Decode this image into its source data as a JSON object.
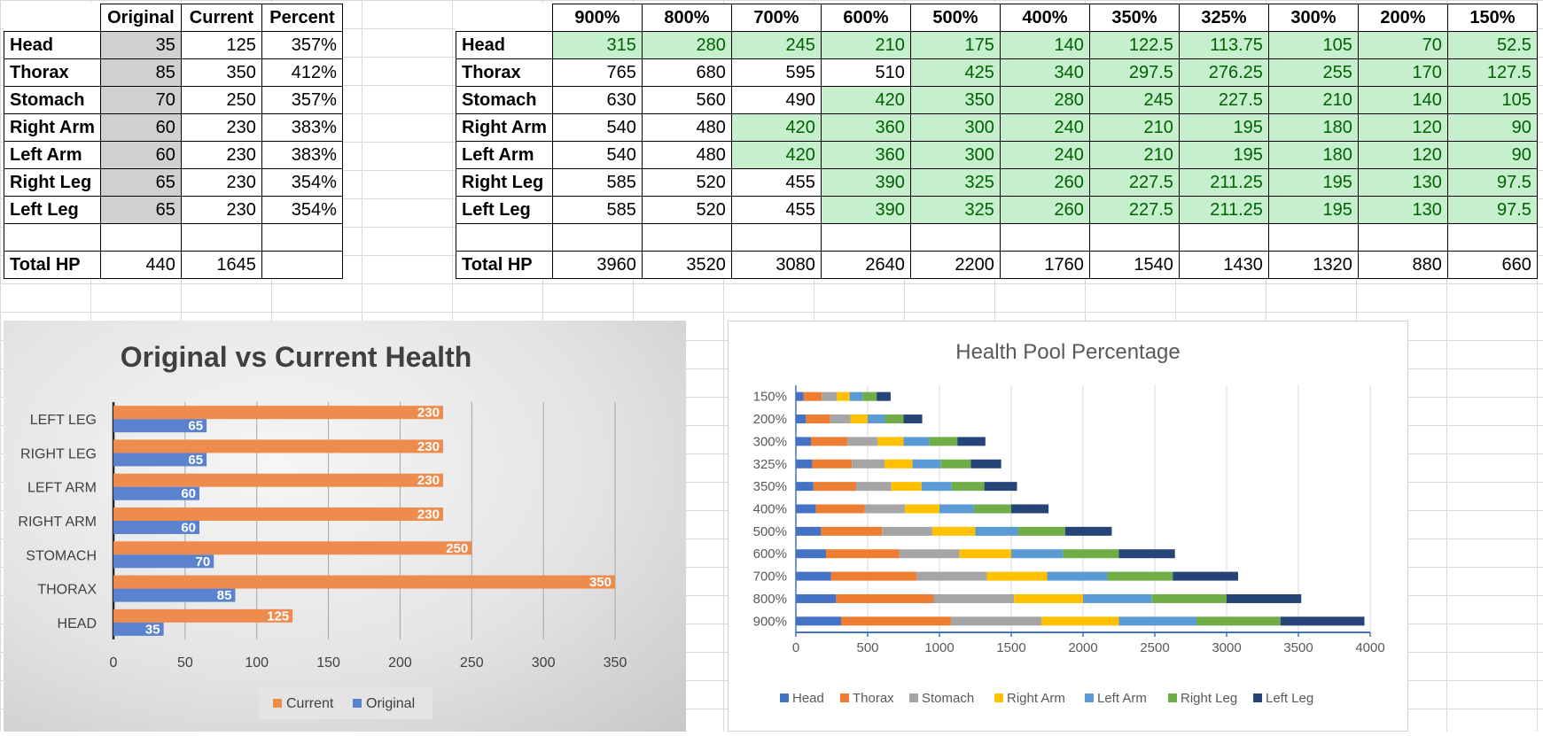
{
  "left_table": {
    "headers": [
      "Original",
      "Current",
      "Percent"
    ],
    "rows": [
      {
        "label": "Head",
        "original": "35",
        "current": "125",
        "percent": "357%"
      },
      {
        "label": "Thorax",
        "original": "85",
        "current": "350",
        "percent": "412%"
      },
      {
        "label": "Stomach",
        "original": "70",
        "current": "250",
        "percent": "357%"
      },
      {
        "label": "Right Arm",
        "original": "60",
        "current": "230",
        "percent": "383%"
      },
      {
        "label": "Left Arm",
        "original": "60",
        "current": "230",
        "percent": "383%"
      },
      {
        "label": "Right Leg",
        "original": "65",
        "current": "230",
        "percent": "354%"
      },
      {
        "label": "Left Leg",
        "original": "65",
        "current": "230",
        "percent": "354%"
      }
    ],
    "total": {
      "label": "Total HP",
      "original": "440",
      "current": "1645",
      "percent": ""
    }
  },
  "right_table": {
    "headers": [
      "900%",
      "800%",
      "700%",
      "600%",
      "500%",
      "400%",
      "350%",
      "325%",
      "300%",
      "200%",
      "150%"
    ],
    "rows": [
      {
        "label": "Head",
        "values": [
          "315",
          "280",
          "245",
          "210",
          "175",
          "140",
          "122.5",
          "113.75",
          "105",
          "70",
          "52.5"
        ],
        "highlight": [
          1,
          1,
          1,
          1,
          1,
          1,
          1,
          1,
          1,
          1,
          1
        ]
      },
      {
        "label": "Thorax",
        "values": [
          "765",
          "680",
          "595",
          "510",
          "425",
          "340",
          "297.5",
          "276.25",
          "255",
          "170",
          "127.5"
        ],
        "highlight": [
          0,
          0,
          0,
          0,
          1,
          1,
          1,
          1,
          1,
          1,
          1
        ]
      },
      {
        "label": "Stomach",
        "values": [
          "630",
          "560",
          "490",
          "420",
          "350",
          "280",
          "245",
          "227.5",
          "210",
          "140",
          "105"
        ],
        "highlight": [
          0,
          0,
          0,
          1,
          1,
          1,
          1,
          1,
          1,
          1,
          1
        ]
      },
      {
        "label": "Right Arm",
        "values": [
          "540",
          "480",
          "420",
          "360",
          "300",
          "240",
          "210",
          "195",
          "180",
          "120",
          "90"
        ],
        "highlight": [
          0,
          0,
          1,
          1,
          1,
          1,
          1,
          1,
          1,
          1,
          1
        ]
      },
      {
        "label": "Left Arm",
        "values": [
          "540",
          "480",
          "420",
          "360",
          "300",
          "240",
          "210",
          "195",
          "180",
          "120",
          "90"
        ],
        "highlight": [
          0,
          0,
          1,
          1,
          1,
          1,
          1,
          1,
          1,
          1,
          1
        ]
      },
      {
        "label": "Right Leg",
        "values": [
          "585",
          "520",
          "455",
          "390",
          "325",
          "260",
          "227.5",
          "211.25",
          "195",
          "130",
          "97.5"
        ],
        "highlight": [
          0,
          0,
          0,
          1,
          1,
          1,
          1,
          1,
          1,
          1,
          1
        ]
      },
      {
        "label": "Left Leg",
        "values": [
          "585",
          "520",
          "455",
          "390",
          "325",
          "260",
          "227.5",
          "211.25",
          "195",
          "130",
          "97.5"
        ],
        "highlight": [
          0,
          0,
          0,
          1,
          1,
          1,
          1,
          1,
          1,
          1,
          1
        ]
      }
    ],
    "total": {
      "label": "Total HP",
      "values": [
        "3960",
        "3520",
        "3080",
        "2640",
        "2200",
        "1760",
        "1540",
        "1430",
        "1320",
        "880",
        "660"
      ]
    }
  },
  "chart_data": [
    {
      "type": "bar",
      "orientation": "horizontal",
      "title": "Original vs Current Health",
      "categories": [
        "HEAD",
        "THORAX",
        "STOMACH",
        "RIGHT ARM",
        "LEFT ARM",
        "RIGHT LEG",
        "LEFT LEG"
      ],
      "series": [
        {
          "name": "Current",
          "values": [
            125,
            350,
            250,
            230,
            230,
            230,
            230
          ],
          "color": "#ed8c4d"
        },
        {
          "name": "Original",
          "values": [
            35,
            85,
            70,
            60,
            60,
            65,
            65
          ],
          "color": "#5b82cf"
        }
      ],
      "xlim": [
        0,
        350
      ],
      "xticks": [
        0,
        50,
        100,
        150,
        200,
        250,
        300,
        350
      ],
      "grid": "vertical",
      "legend": "bottom"
    },
    {
      "type": "bar",
      "orientation": "horizontal",
      "stacked": true,
      "title": "Health Pool Percentage",
      "categories": [
        "900%",
        "800%",
        "700%",
        "600%",
        "500%",
        "400%",
        "350%",
        "325%",
        "300%",
        "200%",
        "150%"
      ],
      "series": [
        {
          "name": "Head",
          "values": [
            315,
            280,
            245,
            210,
            175,
            140,
            122.5,
            113.75,
            105,
            70,
            52.5
          ],
          "color": "#4472c4"
        },
        {
          "name": "Thorax",
          "values": [
            765,
            680,
            595,
            510,
            425,
            340,
            297.5,
            276.25,
            255,
            170,
            127.5
          ],
          "color": "#ed7d31"
        },
        {
          "name": "Stomach",
          "values": [
            630,
            560,
            490,
            420,
            350,
            280,
            245,
            227.5,
            210,
            140,
            105
          ],
          "color": "#a5a5a5"
        },
        {
          "name": "Right Arm",
          "values": [
            540,
            480,
            420,
            360,
            300,
            240,
            210,
            195,
            180,
            120,
            90
          ],
          "color": "#ffc000"
        },
        {
          "name": "Left Arm",
          "values": [
            540,
            480,
            420,
            360,
            300,
            240,
            210,
            195,
            180,
            120,
            90
          ],
          "color": "#5b9bd5"
        },
        {
          "name": "Right Leg",
          "values": [
            585,
            520,
            455,
            390,
            325,
            260,
            227.5,
            211.25,
            195,
            130,
            97.5
          ],
          "color": "#70ad47"
        },
        {
          "name": "Left Leg",
          "values": [
            585,
            520,
            455,
            390,
            325,
            260,
            227.5,
            211.25,
            195,
            130,
            97.5
          ],
          "color": "#264478"
        }
      ],
      "xlim": [
        0,
        4000
      ],
      "xticks": [
        0,
        500,
        1000,
        1500,
        2000,
        2500,
        3000,
        3500,
        4000
      ],
      "grid": "vertical",
      "legend": "bottom"
    }
  ]
}
